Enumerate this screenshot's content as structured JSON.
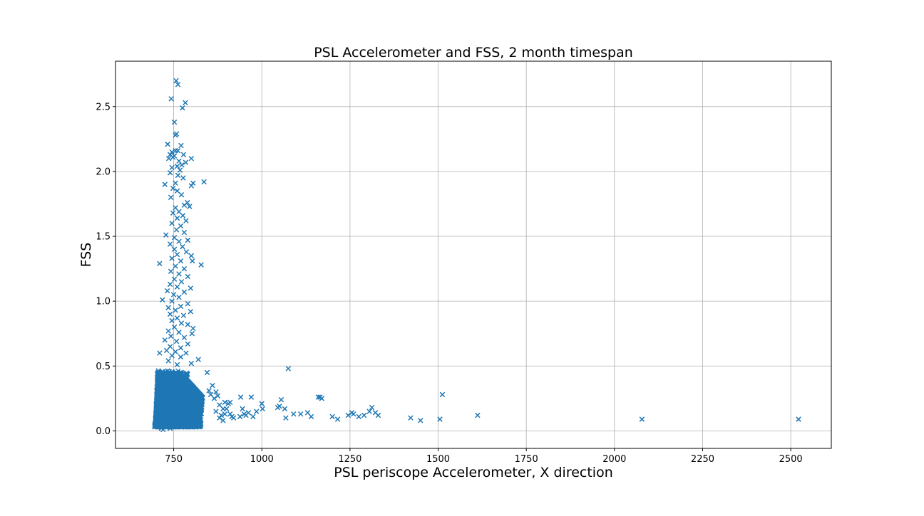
{
  "chart_data": {
    "type": "scatter",
    "title": "PSL Accelerometer and FSS, 2 month timespan",
    "xlabel": "PSL periscope Accelerometer, X direction",
    "ylabel": "FSS",
    "xlim": [
      585,
      2615
    ],
    "ylim": [
      -0.135,
      2.85
    ],
    "xticks": [
      750,
      1000,
      1250,
      1500,
      1750,
      2000,
      2250,
      2500
    ],
    "xtick_labels": [
      "750",
      "1000",
      "1250",
      "1500",
      "1750",
      "2000",
      "2250",
      "2500"
    ],
    "yticks": [
      0.0,
      0.5,
      1.0,
      1.5,
      2.0,
      2.5
    ],
    "ytick_labels": [
      "0.0",
      "0.5",
      "1.0",
      "1.5",
      "2.0",
      "2.5"
    ],
    "grid": true,
    "marker": "x",
    "marker_color": "#1f77b4",
    "cluster_note": "dense cluster of several thousand points near x 690-840, y 0.02-0.55",
    "points": [
      [
        757,
        2.7
      ],
      [
        762,
        2.67
      ],
      [
        743,
        2.56
      ],
      [
        783,
        2.53
      ],
      [
        775,
        2.49
      ],
      [
        752,
        2.38
      ],
      [
        758,
        2.29
      ],
      [
        755,
        2.28
      ],
      [
        733,
        2.21
      ],
      [
        771,
        2.2
      ],
      [
        755,
        2.16
      ],
      [
        762,
        2.16
      ],
      [
        745,
        2.15
      ],
      [
        740,
        2.13
      ],
      [
        752,
        2.12
      ],
      [
        778,
        2.13
      ],
      [
        748,
        2.11
      ],
      [
        736,
        2.1
      ],
      [
        800,
        2.1
      ],
      [
        765,
        2.08
      ],
      [
        784,
        2.07
      ],
      [
        773,
        2.05
      ],
      [
        760,
        2.04
      ],
      [
        745,
        2.03
      ],
      [
        768,
        2.01
      ],
      [
        740,
        1.99
      ],
      [
        762,
        1.97
      ],
      [
        777,
        1.95
      ],
      [
        836,
        1.92
      ],
      [
        755,
        1.91
      ],
      [
        805,
        1.91
      ],
      [
        725,
        1.9
      ],
      [
        800,
        1.89
      ],
      [
        748,
        1.87
      ],
      [
        760,
        1.85
      ],
      [
        772,
        1.82
      ],
      [
        742,
        1.8
      ],
      [
        789,
        1.76
      ],
      [
        780,
        1.74
      ],
      [
        795,
        1.73
      ],
      [
        755,
        1.72
      ],
      [
        765,
        1.69
      ],
      [
        748,
        1.68
      ],
      [
        776,
        1.66
      ],
      [
        760,
        1.64
      ],
      [
        785,
        1.62
      ],
      [
        745,
        1.6
      ],
      [
        770,
        1.58
      ],
      [
        758,
        1.55
      ],
      [
        780,
        1.53
      ],
      [
        728,
        1.51
      ],
      [
        752,
        1.49
      ],
      [
        790,
        1.47
      ],
      [
        765,
        1.46
      ],
      [
        740,
        1.44
      ],
      [
        775,
        1.42
      ],
      [
        752,
        1.4
      ],
      [
        786,
        1.38
      ],
      [
        760,
        1.36
      ],
      [
        800,
        1.35
      ],
      [
        745,
        1.33
      ],
      [
        770,
        1.31
      ],
      [
        803,
        1.31
      ],
      [
        710,
        1.29
      ],
      [
        828,
        1.28
      ],
      [
        755,
        1.27
      ],
      [
        780,
        1.25
      ],
      [
        742,
        1.23
      ],
      [
        765,
        1.21
      ],
      [
        790,
        1.19
      ],
      [
        752,
        1.17
      ],
      [
        772,
        1.15
      ],
      [
        740,
        1.13
      ],
      [
        760,
        1.11
      ],
      [
        798,
        1.1
      ],
      [
        732,
        1.08
      ],
      [
        780,
        1.07
      ],
      [
        750,
        1.05
      ],
      [
        765,
        1.03
      ],
      [
        718,
        1.01
      ],
      [
        745,
        1.0
      ],
      [
        790,
        0.98
      ],
      [
        770,
        0.96
      ],
      [
        735,
        0.95
      ],
      [
        755,
        0.93
      ],
      [
        798,
        0.92
      ],
      [
        740,
        0.9
      ],
      [
        778,
        0.89
      ],
      [
        760,
        0.87
      ],
      [
        745,
        0.85
      ],
      [
        772,
        0.83
      ],
      [
        790,
        0.82
      ],
      [
        752,
        0.8
      ],
      [
        805,
        0.79
      ],
      [
        735,
        0.77
      ],
      [
        765,
        0.76
      ],
      [
        802,
        0.75
      ],
      [
        742,
        0.73
      ],
      [
        780,
        0.72
      ],
      [
        725,
        0.7
      ],
      [
        758,
        0.69
      ],
      [
        790,
        0.67
      ],
      [
        740,
        0.65
      ],
      [
        770,
        0.64
      ],
      [
        730,
        0.62
      ],
      [
        755,
        0.61
      ],
      [
        785,
        0.6
      ],
      [
        710,
        0.6
      ],
      [
        745,
        0.58
      ],
      [
        770,
        0.57
      ],
      [
        820,
        0.55
      ],
      [
        735,
        0.54
      ],
      [
        800,
        0.52
      ],
      [
        760,
        0.51
      ],
      [
        845,
        0.45
      ],
      [
        1075,
        0.48
      ],
      [
        1512,
        0.28
      ],
      [
        1612,
        0.12
      ],
      [
        2078,
        0.09
      ],
      [
        2522,
        0.09
      ],
      [
        1160,
        0.26
      ],
      [
        1165,
        0.26
      ],
      [
        1170,
        0.25
      ],
      [
        1055,
        0.24
      ],
      [
        1045,
        0.18
      ],
      [
        1050,
        0.19
      ],
      [
        1065,
        0.17
      ],
      [
        1068,
        0.1
      ],
      [
        1090,
        0.13
      ],
      [
        1110,
        0.13
      ],
      [
        1130,
        0.14
      ],
      [
        1140,
        0.11
      ],
      [
        1200,
        0.11
      ],
      [
        1215,
        0.09
      ],
      [
        1245,
        0.12
      ],
      [
        1255,
        0.14
      ],
      [
        1260,
        0.13
      ],
      [
        1275,
        0.11
      ],
      [
        1290,
        0.12
      ],
      [
        1305,
        0.15
      ],
      [
        1312,
        0.18
      ],
      [
        1322,
        0.14
      ],
      [
        1330,
        0.12
      ],
      [
        1422,
        0.1
      ],
      [
        1450,
        0.08
      ],
      [
        1505,
        0.09
      ],
      [
        940,
        0.26
      ],
      [
        970,
        0.26
      ],
      [
        1000,
        0.21
      ],
      [
        1002,
        0.17
      ],
      [
        985,
        0.15
      ],
      [
        962,
        0.14
      ],
      [
        950,
        0.13
      ],
      [
        945,
        0.17
      ],
      [
        938,
        0.11
      ],
      [
        910,
        0.22
      ],
      [
        905,
        0.21
      ],
      [
        895,
        0.22
      ],
      [
        880,
        0.2
      ],
      [
        870,
        0.3
      ],
      [
        875,
        0.27
      ],
      [
        890,
        0.17
      ],
      [
        895,
        0.13
      ],
      [
        915,
        0.11
      ],
      [
        920,
        0.1
      ],
      [
        885,
        0.12
      ],
      [
        865,
        0.25
      ],
      [
        860,
        0.35
      ],
      [
        855,
        0.28
      ],
      [
        850,
        0.31
      ],
      [
        870,
        0.15
      ],
      [
        880,
        0.1
      ],
      [
        890,
        0.08
      ],
      [
        910,
        0.13
      ],
      [
        900,
        0.17
      ],
      [
        955,
        0.12
      ],
      [
        975,
        0.11
      ],
      [
        728,
        0.03
      ],
      [
        705,
        0.04
      ],
      [
        760,
        0.03
      ],
      [
        790,
        0.04
      ],
      [
        715,
        0.02
      ],
      [
        740,
        0.02
      ],
      [
        720,
        0.01
      ]
    ]
  }
}
